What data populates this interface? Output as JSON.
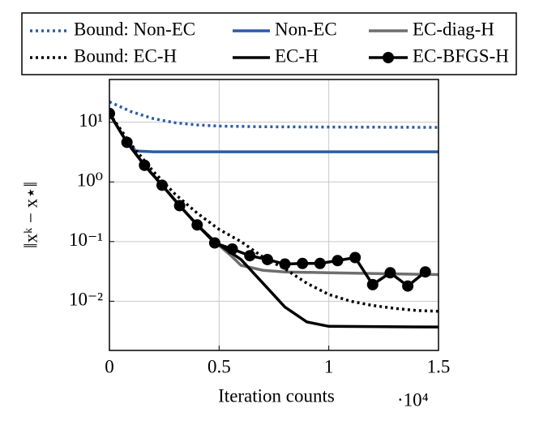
{
  "chart_data": {
    "type": "line",
    "ylabel": "‖xᵏ − x⋆‖",
    "xlabel": "Iteration counts",
    "x_multiplier": "·10⁴",
    "xlim": [
      0,
      1.5
    ],
    "xticks": [
      0,
      0.5,
      1,
      1.5
    ],
    "ylim": [
      0.0015,
      52
    ],
    "log_y": true,
    "yticks": [
      {
        "value": 0.01,
        "label": "10⁻²"
      },
      {
        "value": 0.1,
        "label": "10⁻¹"
      },
      {
        "value": 1,
        "label": "10⁰"
      },
      {
        "value": 10,
        "label": "10¹"
      }
    ],
    "grid": true,
    "legend": "top",
    "series": [
      {
        "name": "Bound: Non-EC",
        "color": "#2a5ba8",
        "style": "dotted",
        "x": [
          0,
          0.1,
          0.2,
          0.3,
          0.4,
          0.5,
          0.7,
          1.0,
          1.5
        ],
        "values": [
          22,
          15,
          11.5,
          9.8,
          9,
          8.6,
          8.4,
          8.3,
          8.2
        ]
      },
      {
        "name": "Non-EC",
        "color": "#2a5ba8",
        "style": "solid",
        "x": [
          0,
          0.06,
          0.12,
          0.2,
          1.5
        ],
        "values": [
          14,
          6,
          3.3,
          3.2,
          3.2
        ]
      },
      {
        "name": "EC-diag-H",
        "color": "#6e6e6e",
        "style": "solid",
        "x": [
          0,
          0.08,
          0.16,
          0.24,
          0.32,
          0.4,
          0.48,
          0.55,
          0.6,
          0.7,
          0.8,
          1.0,
          1.5
        ],
        "values": [
          14,
          4.6,
          1.9,
          0.88,
          0.4,
          0.19,
          0.1,
          0.06,
          0.04,
          0.033,
          0.031,
          0.03,
          0.028
        ]
      },
      {
        "name": "Bound: EC-H",
        "color": "#000000",
        "style": "dotted",
        "x": [
          0,
          0.1,
          0.2,
          0.3,
          0.4,
          0.5,
          0.6,
          0.7,
          0.8,
          0.9,
          1.0,
          1.1,
          1.2,
          1.3,
          1.4,
          1.5
        ],
        "values": [
          14,
          4.2,
          1.5,
          0.62,
          0.3,
          0.16,
          0.1,
          0.055,
          0.035,
          0.02,
          0.013,
          0.01,
          0.0085,
          0.0076,
          0.007,
          0.0068
        ]
      },
      {
        "name": "EC-H",
        "color": "#000000",
        "style": "solid",
        "x": [
          0,
          0.08,
          0.16,
          0.24,
          0.32,
          0.4,
          0.48,
          0.6,
          0.7,
          0.8,
          0.9,
          1.0,
          1.5
        ],
        "values": [
          14,
          4.6,
          1.9,
          0.88,
          0.4,
          0.19,
          0.1,
          0.05,
          0.02,
          0.008,
          0.0045,
          0.0038,
          0.0037
        ]
      },
      {
        "name": "EC-BFGS-H",
        "color": "#000000",
        "style": "solid",
        "marker": true,
        "x": [
          0,
          0.08,
          0.16,
          0.24,
          0.32,
          0.4,
          0.48,
          0.56,
          0.64,
          0.72,
          0.8,
          0.88,
          0.96,
          1.04,
          1.12,
          1.2,
          1.28,
          1.36,
          1.44
        ],
        "values": [
          14,
          4.6,
          1.9,
          0.88,
          0.4,
          0.19,
          0.095,
          0.075,
          0.058,
          0.05,
          0.042,
          0.043,
          0.043,
          0.048,
          0.054,
          0.019,
          0.03,
          0.018,
          0.031
        ]
      }
    ]
  }
}
